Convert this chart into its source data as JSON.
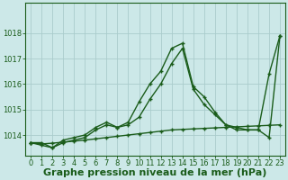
{
  "xlabel": "Graphe pression niveau de la mer (hPa)",
  "x": [
    0,
    1,
    2,
    3,
    4,
    5,
    6,
    7,
    8,
    9,
    10,
    11,
    12,
    13,
    14,
    15,
    16,
    17,
    18,
    19,
    20,
    21,
    22,
    23
  ],
  "line1": [
    1013.7,
    1013.7,
    1013.5,
    1013.8,
    1013.9,
    1014.0,
    1014.3,
    1014.5,
    1014.3,
    1014.5,
    1015.3,
    1016.0,
    1016.5,
    1017.4,
    1017.6,
    1015.9,
    1015.5,
    1014.9,
    1014.4,
    1014.3,
    1014.2,
    1014.2,
    1016.4,
    1017.9
  ],
  "line2": [
    1013.7,
    1013.6,
    1013.5,
    1013.7,
    1013.8,
    1013.9,
    1014.2,
    1014.4,
    1014.3,
    1014.4,
    1014.7,
    1015.4,
    1016.0,
    1016.8,
    1017.4,
    1015.8,
    1015.2,
    1014.8,
    1014.4,
    1014.2,
    1014.2,
    1014.2,
    1013.9,
    1017.9
  ],
  "line3": [
    1013.7,
    1013.65,
    1013.68,
    1013.72,
    1013.76,
    1013.8,
    1013.85,
    1013.9,
    1013.95,
    1014.0,
    1014.05,
    1014.1,
    1014.15,
    1014.2,
    1014.22,
    1014.24,
    1014.26,
    1014.28,
    1014.3,
    1014.32,
    1014.34,
    1014.36,
    1014.38,
    1014.4
  ],
  "bg_color": "#cce8e8",
  "grid_color": "#aacccc",
  "line_color": "#1a5c1a",
  "marker": "+",
  "ylim_min": 1013.2,
  "ylim_max": 1019.2,
  "yticks": [
    1014,
    1015,
    1016,
    1017,
    1018
  ],
  "ytick_labels": [
    "1014",
    "1015",
    "1016",
    "1017",
    "1018"
  ],
  "tick_fontsize": 6.0,
  "xlabel_fontsize": 8.0,
  "line_width": 1.0,
  "marker_size": 3
}
